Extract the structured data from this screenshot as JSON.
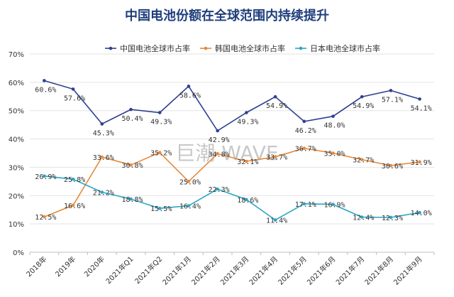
{
  "chart_data": {
    "type": "line",
    "title": "中国电池份额在全球范围内持续提升",
    "watermark": "巨潮 WAVE",
    "categories": [
      "2018年",
      "2019年",
      "2020年",
      "2021年Q1",
      "2021年Q2",
      "2021年1月",
      "2021年2月",
      "2021年3月",
      "2021年4月",
      "2021年5月",
      "2021年6月",
      "2021年7月",
      "2021年8月",
      "2021年9月"
    ],
    "y_ticks": [
      "0%",
      "10%",
      "20%",
      "30%",
      "40%",
      "50%",
      "60%",
      "70%"
    ],
    "ylim": [
      0,
      70
    ],
    "grid": true,
    "legend_position": "top",
    "series": [
      {
        "name": "中国电池全球市占率",
        "color": "#2f3f8f",
        "values": [
          60.6,
          57.6,
          45.3,
          50.4,
          49.3,
          58.6,
          42.9,
          49.3,
          54.9,
          46.2,
          48.0,
          54.9,
          57.1,
          54.1
        ],
        "labels": [
          "60.6%",
          "57.6%",
          "45.3%",
          "50.4%",
          "49.3%",
          "58.6%",
          "42.9%",
          "49.3%",
          "54.9%",
          "46.2%",
          "48.0%",
          "54.9%",
          "57.1%",
          "54.1%"
        ]
      },
      {
        "name": "韩国电池全球市占率",
        "color": "#e8893a",
        "values": [
          12.5,
          16.6,
          33.6,
          30.8,
          35.2,
          25.0,
          34.8,
          32.1,
          33.7,
          36.7,
          35.0,
          32.7,
          30.6,
          31.9
        ],
        "labels": [
          "12.5%",
          "16.6%",
          "33.6%",
          "30.8%",
          "35.2%",
          "25.0%",
          "34.8%",
          "32.1%",
          "33.7%",
          "36.7%",
          "35.0%",
          "32.7%",
          "30.6%",
          "31.9%"
        ]
      },
      {
        "name": "日本电池全球市占率",
        "color": "#2aa6c4",
        "values": [
          26.9,
          25.8,
          21.2,
          18.8,
          15.5,
          16.4,
          22.3,
          18.6,
          11.4,
          17.1,
          16.9,
          12.4,
          12.3,
          14.0
        ],
        "labels": [
          "26.9%",
          "25.8%",
          "21.2%",
          "18.8%",
          "15.5%",
          "16.4%",
          "22.3%",
          "18.6%",
          "11.4%",
          "17.1%",
          "16.9%",
          "12.4%",
          "12.3%",
          "14.0%"
        ]
      }
    ]
  }
}
